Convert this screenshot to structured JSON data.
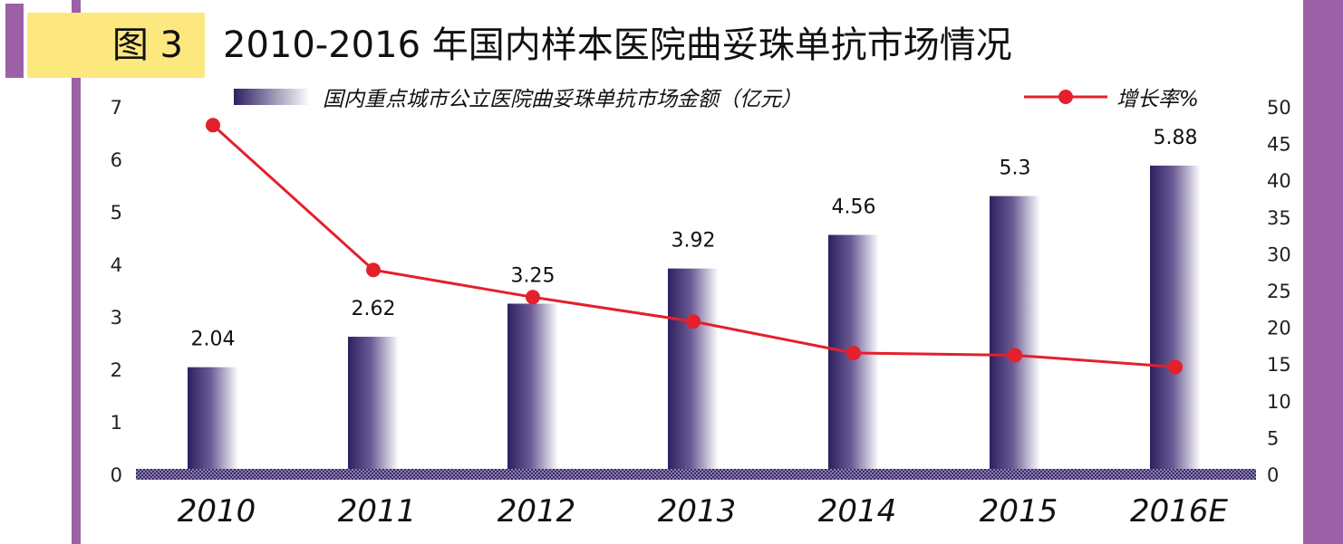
{
  "header": {
    "figure_label": "图 3",
    "title": "2010-2016 年国内样本医院曲妥珠单抗市场情况"
  },
  "colors": {
    "accent_purple": "#9b60a6",
    "label_yellow": "#fde77f",
    "bar_dark": "#2e2060",
    "line_red": "#e3202c"
  },
  "chart_data": {
    "type": "bar",
    "categories": [
      "2010",
      "2011",
      "2012",
      "2013",
      "2014",
      "2015",
      "2016E"
    ],
    "series": [
      {
        "name": "国内重点城市公立医院曲妥珠单抗市场金额（亿元）",
        "type": "bar",
        "axis": "left",
        "values": [
          2.04,
          2.62,
          3.25,
          3.92,
          4.56,
          5.3,
          5.88
        ],
        "labels": [
          "2.04",
          "2.62",
          "3.25",
          "3.92",
          "4.56",
          "5.3",
          "5.88"
        ]
      },
      {
        "name": "增长率%",
        "type": "line",
        "axis": "right",
        "values": [
          47.5,
          27.8,
          24.1,
          20.8,
          16.5,
          16.2,
          14.6
        ]
      }
    ],
    "y_left": {
      "ylim": [
        0,
        7
      ],
      "ticks": [
        "0",
        "1",
        "2",
        "3",
        "4",
        "5",
        "6",
        "7"
      ]
    },
    "y_right": {
      "ylim": [
        0,
        50
      ],
      "ticks": [
        "0",
        "5",
        "10",
        "15",
        "20",
        "25",
        "30",
        "35",
        "40",
        "45",
        "50"
      ]
    },
    "legend_position": "top",
    "grid": false
  }
}
